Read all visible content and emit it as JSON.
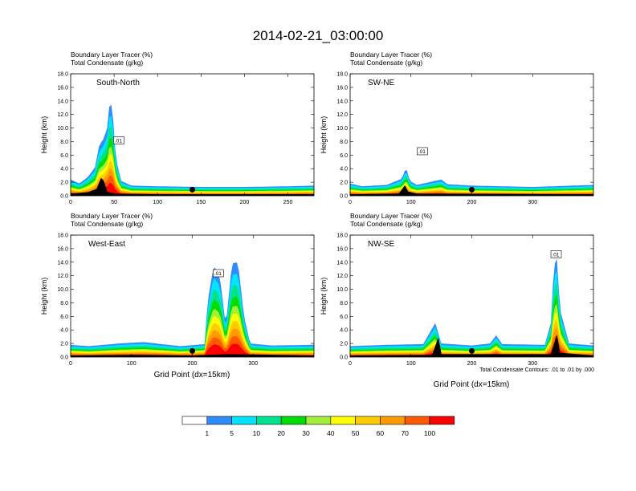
{
  "figure": {
    "title": "2014-02-21_03:00:00",
    "xlabel": "Grid Point (dx=15km)",
    "contour_note": "Total Condensate Contours: .01 to .01 by .000"
  },
  "chart_data": [
    {
      "type": "heatmap",
      "id": "south-north",
      "label": "South-North",
      "subtitle_lines": [
        "Boundary Layer Tracer   (%)",
        "Total Condensate   (g/kg)"
      ],
      "ylabel": "Height (km)",
      "xlabel": "",
      "xlim": [
        0,
        280
      ],
      "ylim": [
        0,
        18
      ],
      "xticks": [
        0,
        50,
        100,
        150,
        200,
        250
      ],
      "yticks": [
        0,
        2,
        4,
        6,
        8,
        10,
        12,
        14,
        16,
        18
      ],
      "ytick_labels": [
        "0.0",
        "2.0",
        "4.0",
        "6.0",
        "8.0",
        "10.0",
        "12.0",
        "14.0",
        "16.0",
        "18.0"
      ],
      "terrain": [
        [
          0,
          0.3
        ],
        [
          20,
          0.5
        ],
        [
          30,
          1.0
        ],
        [
          35,
          2.6
        ],
        [
          38,
          2.2
        ],
        [
          42,
          0.6
        ],
        [
          50,
          0.3
        ],
        [
          100,
          0.2
        ],
        [
          150,
          0.2
        ],
        [
          200,
          0.2
        ],
        [
          280,
          0.2
        ]
      ],
      "bl_top": [
        [
          0,
          2.4
        ],
        [
          10,
          1.8
        ],
        [
          20,
          2.8
        ],
        [
          28,
          4.2
        ],
        [
          33,
          7.5
        ],
        [
          38,
          8.4
        ],
        [
          42,
          10.0
        ],
        [
          45,
          14.0
        ],
        [
          48,
          13.0
        ],
        [
          52,
          5.5
        ],
        [
          58,
          2.2
        ],
        [
          70,
          1.5
        ],
        [
          100,
          1.4
        ],
        [
          150,
          1.3
        ],
        [
          200,
          1.3
        ],
        [
          250,
          1.4
        ],
        [
          280,
          1.5
        ]
      ],
      "contour_label": ".01",
      "contour_label_at": [
        55,
        8.0
      ],
      "marker_x": 140
    },
    {
      "type": "heatmap",
      "id": "sw-ne",
      "label": "SW-NE",
      "subtitle_lines": [
        "Boundary Layer Tracer   (%)",
        "Total Condensate   (g/kg)"
      ],
      "ylabel": "Height (km)",
      "xlabel": "",
      "xlim": [
        0,
        400
      ],
      "ylim": [
        0,
        18
      ],
      "xticks": [
        0,
        100,
        200,
        300
      ],
      "yticks": [
        0,
        2,
        4,
        6,
        8,
        10,
        12,
        14,
        16,
        18
      ],
      "ytick_labels": [
        "0.0",
        "2.0",
        "4.0",
        "6.0",
        "8.0",
        "10.0",
        "12.0",
        "14.0",
        "16.0",
        "18.0"
      ],
      "terrain": [
        [
          0,
          0.2
        ],
        [
          80,
          0.3
        ],
        [
          90,
          1.5
        ],
        [
          95,
          0.6
        ],
        [
          110,
          0.3
        ],
        [
          400,
          0.2
        ]
      ],
      "bl_top": [
        [
          0,
          1.8
        ],
        [
          20,
          1.4
        ],
        [
          60,
          1.6
        ],
        [
          85,
          2.5
        ],
        [
          92,
          4.2
        ],
        [
          98,
          2.2
        ],
        [
          110,
          1.6
        ],
        [
          150,
          2.4
        ],
        [
          160,
          1.7
        ],
        [
          200,
          1.5
        ],
        [
          300,
          1.3
        ],
        [
          400,
          1.6
        ]
      ],
      "contour_label": ".01",
      "contour_label_at": [
        118,
        6.4
      ],
      "marker_x": 200
    },
    {
      "type": "heatmap",
      "id": "west-east",
      "label": "West-East",
      "subtitle_lines": [
        "Boundary Layer Tracer   (%)",
        "Total Condensate   (g/kg)"
      ],
      "ylabel": "Height (km)",
      "xlabel": "",
      "xlim": [
        0,
        400
      ],
      "ylim": [
        0,
        18
      ],
      "xticks": [
        0,
        100,
        200,
        300
      ],
      "yticks": [
        0,
        2,
        4,
        6,
        8,
        10,
        12,
        14,
        16,
        18
      ],
      "ytick_labels": [
        "0.0",
        "2.0",
        "4.0",
        "6.0",
        "8.0",
        "10.0",
        "12.0",
        "14.0",
        "16.0",
        "18.0"
      ],
      "terrain": [
        [
          0,
          0.2
        ],
        [
          100,
          0.3
        ],
        [
          200,
          0.2
        ],
        [
          260,
          0.4
        ],
        [
          400,
          0.2
        ]
      ],
      "bl_top": [
        [
          0,
          1.8
        ],
        [
          30,
          1.6
        ],
        [
          80,
          2.0
        ],
        [
          120,
          2.2
        ],
        [
          180,
          1.6
        ],
        [
          220,
          1.9
        ],
        [
          225,
          8.0
        ],
        [
          235,
          13.5
        ],
        [
          245,
          12.0
        ],
        [
          255,
          4.5
        ],
        [
          265,
          13.8
        ],
        [
          275,
          14.0
        ],
        [
          285,
          6.0
        ],
        [
          295,
          2.0
        ],
        [
          330,
          1.7
        ],
        [
          400,
          1.8
        ]
      ],
      "contour_label": ".01",
      "contour_label_at": [
        242,
        12.2
      ],
      "marker_x": 200
    },
    {
      "type": "heatmap",
      "id": "nw-se",
      "label": "NW-SE",
      "subtitle_lines": [
        "Boundary Layer Tracer   (%)",
        "Total Condensate   (g/kg)"
      ],
      "ylabel": "Height (km)",
      "xlabel": "Grid Point (dx=15km)",
      "xlim": [
        0,
        400
      ],
      "ylim": [
        0,
        18
      ],
      "xticks": [
        0,
        100,
        200,
        300
      ],
      "yticks": [
        0,
        2,
        4,
        6,
        8,
        10,
        12,
        14,
        16,
        18
      ],
      "ytick_labels": [
        "0.0",
        "2.0",
        "4.0",
        "6.0",
        "8.0",
        "10.0",
        "12.0",
        "14.0",
        "16.0",
        "18.0"
      ],
      "terrain": [
        [
          0,
          0.2
        ],
        [
          135,
          0.3
        ],
        [
          145,
          2.8
        ],
        [
          150,
          0.4
        ],
        [
          330,
          0.4
        ],
        [
          340,
          3.2
        ],
        [
          345,
          0.6
        ],
        [
          400,
          0.2
        ]
      ],
      "bl_top": [
        [
          0,
          1.6
        ],
        [
          60,
          1.8
        ],
        [
          120,
          1.9
        ],
        [
          140,
          5.0
        ],
        [
          150,
          2.0
        ],
        [
          200,
          1.7
        ],
        [
          230,
          2.0
        ],
        [
          240,
          3.2
        ],
        [
          250,
          1.9
        ],
        [
          320,
          1.8
        ],
        [
          330,
          5.0
        ],
        [
          335,
          13.5
        ],
        [
          340,
          14.5
        ],
        [
          345,
          7.0
        ],
        [
          360,
          2.0
        ],
        [
          400,
          1.7
        ]
      ],
      "contour_label": ".01",
      "contour_label_at": [
        338,
        15.0
      ],
      "marker_x": 200
    }
  ],
  "colorbar": {
    "labels": [
      "1",
      "5",
      "10",
      "20",
      "30",
      "40",
      "50",
      "60",
      "70",
      "100"
    ],
    "colors": [
      "#ffffff",
      "#2f8cff",
      "#00e5ff",
      "#00e38e",
      "#00dd00",
      "#a3ef3c",
      "#ffff00",
      "#ffcc00",
      "#ff9a00",
      "#ff5a00",
      "#ff0000"
    ]
  }
}
